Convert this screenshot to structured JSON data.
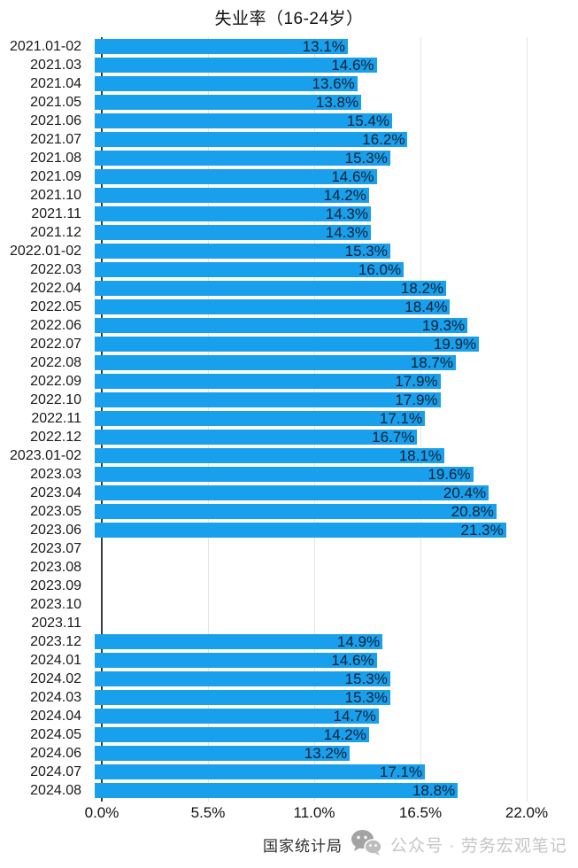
{
  "title": "失业率（16-24岁）",
  "footer": {
    "source": "国家统计局",
    "watermark": "公众号 · 劳务宏观笔记"
  },
  "icons": {
    "wechat_icon": "wechat-chat-bubbles"
  },
  "colors": {
    "bar": "#18a0ec",
    "value_text": "#112033",
    "axis_line": "#3c3c3c",
    "gridline": "#e4e4e4",
    "watermark_text": "#c6c6c6"
  },
  "chart_data": {
    "type": "bar",
    "orientation": "horizontal",
    "title": "失业率（16-24岁）",
    "xlabel": "",
    "ylabel": "",
    "xlim": [
      0,
      22
    ],
    "xticklabels": [
      "0.0%",
      "5.5%",
      "11.0%",
      "16.5%",
      "22.0%"
    ],
    "grid": "vertical-light",
    "legend": "none",
    "categories": [
      "2021.01-02",
      "2021.03",
      "2021.04",
      "2021.05",
      "2021.06",
      "2021.07",
      "2021.08",
      "2021.09",
      "2021.10",
      "2021.11",
      "2021.12",
      "2022.01-02",
      "2022.03",
      "2022.04",
      "2022.05",
      "2022.06",
      "2022.07",
      "2022.08",
      "2022.09",
      "2022.10",
      "2022.11",
      "2022.12",
      "2023.01-02",
      "2023.03",
      "2023.04",
      "2023.05",
      "2023.06",
      "2023.07",
      "2023.08",
      "2023.09",
      "2023.10",
      "2023.11",
      "2023.12",
      "2024.01",
      "2024.02",
      "2024.03",
      "2024.04",
      "2024.05",
      "2024.06",
      "2024.07",
      "2024.08"
    ],
    "values": [
      13.1,
      14.6,
      13.6,
      13.8,
      15.4,
      16.2,
      15.3,
      14.6,
      14.2,
      14.3,
      14.3,
      15.3,
      16.0,
      18.2,
      18.4,
      19.3,
      19.9,
      18.7,
      17.9,
      17.9,
      17.1,
      16.7,
      18.1,
      19.6,
      20.4,
      20.8,
      21.3,
      null,
      null,
      null,
      null,
      null,
      14.9,
      14.6,
      15.3,
      15.3,
      14.7,
      14.2,
      13.2,
      17.1,
      18.8
    ]
  }
}
